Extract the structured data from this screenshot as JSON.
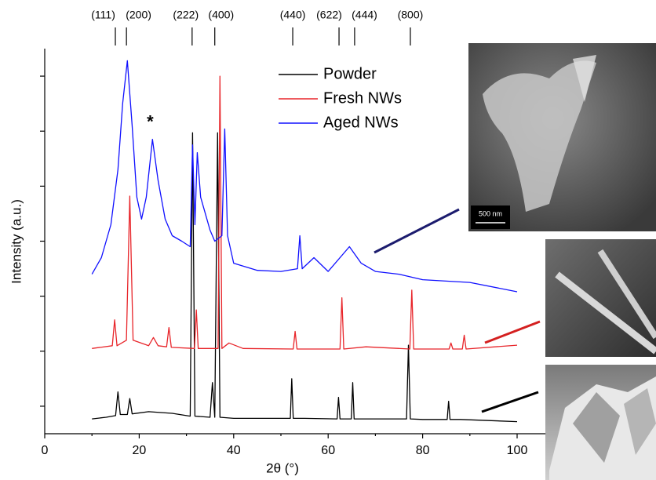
{
  "chart_data": {
    "type": "line",
    "xlabel": "2θ (°)",
    "ylabel": "Intensity (a.u.)",
    "xlim": [
      0,
      106
    ],
    "xticks": [
      0,
      20,
      40,
      60,
      80,
      100
    ],
    "ylim": [
      0,
      7
    ],
    "yticks": [
      0.5,
      1.5,
      2.5,
      3.5,
      4.5,
      5.5,
      6.5
    ],
    "ytick_labels": false,
    "legend": "top-center",
    "series": [
      {
        "name": "Powder",
        "color": "#000000",
        "x": [
          10,
          13,
          15,
          15.5,
          16,
          17.5,
          18,
          18.5,
          22,
          27,
          30.8,
          31.3,
          31.8,
          35,
          35.5,
          36,
          36.6,
          37.1,
          40,
          47,
          52,
          52.3,
          52.6,
          55,
          61.9,
          62.2,
          62.5,
          64.9,
          65.2,
          65.5,
          70,
          76.6,
          77,
          77.4,
          80,
          85.2,
          85.5,
          85.8,
          88,
          100
        ],
        "values": [
          0.27,
          0.3,
          0.33,
          0.76,
          0.35,
          0.35,
          0.64,
          0.36,
          0.4,
          0.37,
          0.32,
          5.47,
          0.32,
          0.3,
          0.93,
          0.3,
          5.47,
          0.3,
          0.28,
          0.28,
          0.28,
          1.0,
          0.28,
          0.28,
          0.27,
          0.66,
          0.27,
          0.27,
          0.93,
          0.27,
          0.27,
          0.27,
          1.61,
          0.27,
          0.26,
          0.26,
          0.59,
          0.26,
          0.26,
          0.22
        ]
      },
      {
        "name": "Fresh NWs",
        "color": "#e8252a",
        "x": [
          10,
          14.3,
          14.8,
          15.3,
          17.3,
          18,
          18.7,
          22,
          23,
          24,
          25.8,
          26.3,
          26.8,
          31.7,
          32.1,
          32.5,
          36.7,
          37.1,
          37.5,
          39,
          42,
          52.6,
          53,
          53.4,
          62.5,
          62.9,
          63.3,
          68,
          77.3,
          77.7,
          78.1,
          85.6,
          86,
          86.4,
          88.4,
          88.8,
          89.2,
          100
        ],
        "values": [
          1.55,
          1.6,
          2.07,
          1.6,
          1.7,
          4.32,
          1.7,
          1.6,
          1.75,
          1.6,
          1.58,
          1.93,
          1.57,
          1.55,
          2.25,
          1.55,
          1.55,
          6.5,
          1.55,
          1.65,
          1.55,
          1.54,
          1.86,
          1.54,
          1.54,
          2.47,
          1.54,
          1.58,
          1.54,
          2.61,
          1.54,
          1.54,
          1.65,
          1.54,
          1.54,
          1.79,
          1.54,
          1.61
        ]
      },
      {
        "name": "Aged NWs",
        "color": "#1010ff",
        "x": [
          10,
          12,
          14,
          15.5,
          16.5,
          17.5,
          18.5,
          19.5,
          20.5,
          21.5,
          22.8,
          24,
          25.5,
          27,
          29,
          30.8,
          31.3,
          31.8,
          32.3,
          33,
          34,
          35,
          36,
          37.5,
          38.1,
          38.7,
          40,
          45,
          50,
          53.5,
          54,
          54.5,
          57,
          60,
          64.5,
          67,
          70,
          75,
          80,
          90,
          100
        ],
        "values": [
          2.9,
          3.2,
          3.8,
          4.8,
          6.0,
          6.78,
          5.6,
          4.3,
          3.9,
          4.3,
          5.35,
          4.6,
          3.9,
          3.6,
          3.5,
          3.4,
          5.25,
          3.8,
          5.11,
          4.3,
          4.0,
          3.7,
          3.5,
          3.6,
          5.54,
          3.6,
          3.1,
          2.97,
          2.95,
          3.0,
          3.6,
          3.0,
          3.2,
          2.95,
          3.4,
          3.1,
          2.95,
          2.9,
          2.8,
          2.75,
          2.58
        ]
      }
    ],
    "reference_peaks": [
      {
        "label": "(111)",
        "x": 14.95
      },
      {
        "label": "(200)",
        "x": 17.3
      },
      {
        "label": "(222)",
        "x": 31.2
      },
      {
        "label": "(400)",
        "x": 36.0
      },
      {
        "label": "(440)",
        "x": 52.5
      },
      {
        "label": "(622)",
        "x": 62.3
      },
      {
        "label": "(444)",
        "x": 65.6
      },
      {
        "label": "(800)",
        "x": 77.4
      }
    ],
    "annotations": [
      {
        "text": "*",
        "x": 23,
        "y": 5.65
      }
    ],
    "inset_scale_bar": "500 nm"
  }
}
